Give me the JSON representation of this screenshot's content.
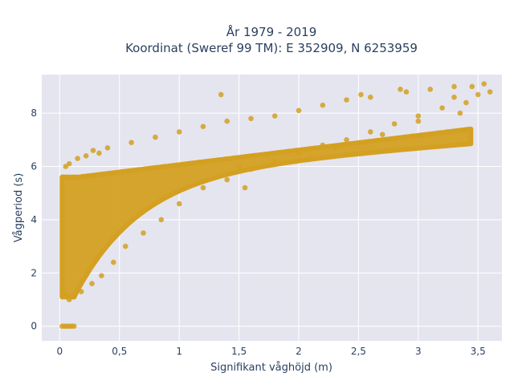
{
  "chart_data": {
    "type": "scatter",
    "title_lines": [
      "År 1979 - 2019",
      "Koordinat (Sweref 99 TM): E 352909, N 6253959"
    ],
    "xlabel": "Signifikant våghöjd (m)",
    "ylabel": "Vågperiod (s)",
    "xlim": [
      -0.15,
      3.7
    ],
    "ylim": [
      -0.55,
      9.45
    ],
    "x_ticks": [
      0,
      0.5,
      1,
      1.5,
      2,
      2.5,
      3,
      3.5
    ],
    "x_tick_labels": [
      "0",
      "0,5",
      "1",
      "1,5",
      "2",
      "2,5",
      "3",
      "3,5"
    ],
    "y_ticks": [
      0,
      2,
      4,
      6,
      8
    ],
    "y_tick_labels": [
      "0",
      "2",
      "4",
      "6",
      "8"
    ],
    "grid": true,
    "background_color": "#e5e5f0",
    "marker_color": "#d4a021",
    "series": [
      {
        "points": [
          [
            0.02,
            0
          ],
          [
            0.04,
            0
          ],
          [
            0.06,
            0
          ],
          [
            0.08,
            0
          ],
          [
            0.1,
            0
          ],
          [
            0.12,
            0
          ],
          [
            0.03,
            1.4
          ],
          [
            0.05,
            1.2
          ],
          [
            0.08,
            1.0
          ],
          [
            0.12,
            1.1
          ],
          [
            0.18,
            1.3
          ],
          [
            0.03,
            5.6
          ],
          [
            0.05,
            6.0
          ],
          [
            0.08,
            6.1
          ],
          [
            0.15,
            6.3
          ],
          [
            0.22,
            6.4
          ],
          [
            0.28,
            6.6
          ],
          [
            0.33,
            6.5
          ],
          [
            0.27,
            1.6
          ],
          [
            0.35,
            1.9
          ],
          [
            0.45,
            2.4
          ],
          [
            0.55,
            3.0
          ],
          [
            0.7,
            3.5
          ],
          [
            0.85,
            4.0
          ],
          [
            1.0,
            4.6
          ],
          [
            1.2,
            5.2
          ],
          [
            1.4,
            5.5
          ],
          [
            1.6,
            5.9
          ],
          [
            1.8,
            6.2
          ],
          [
            2.0,
            6.5
          ],
          [
            2.2,
            6.8
          ],
          [
            2.4,
            7.0
          ],
          [
            2.6,
            7.3
          ],
          [
            2.8,
            7.6
          ],
          [
            3.0,
            7.9
          ],
          [
            3.2,
            8.2
          ],
          [
            3.4,
            8.4
          ],
          [
            0.4,
            6.7
          ],
          [
            0.6,
            6.9
          ],
          [
            0.8,
            7.1
          ],
          [
            1.0,
            7.3
          ],
          [
            1.2,
            7.5
          ],
          [
            1.35,
            8.7
          ],
          [
            1.4,
            7.7
          ],
          [
            1.6,
            7.8
          ],
          [
            1.8,
            7.9
          ],
          [
            2.0,
            8.1
          ],
          [
            2.2,
            8.3
          ],
          [
            2.4,
            8.5
          ],
          [
            2.6,
            8.6
          ],
          [
            2.9,
            8.8
          ],
          [
            3.1,
            8.9
          ],
          [
            3.3,
            9.0
          ],
          [
            3.45,
            9.0
          ],
          [
            3.55,
            9.1
          ],
          [
            3.5,
            8.7
          ],
          [
            3.6,
            8.8
          ],
          [
            3.3,
            8.6
          ],
          [
            2.85,
            8.9
          ],
          [
            2.52,
            8.7
          ],
          [
            1.5,
            6.0
          ],
          [
            1.55,
            5.2
          ],
          [
            2.1,
            6.3
          ],
          [
            2.3,
            6.7
          ],
          [
            2.7,
            7.2
          ],
          [
            3.0,
            7.7
          ],
          [
            3.35,
            8.0
          ]
        ]
      }
    ]
  }
}
